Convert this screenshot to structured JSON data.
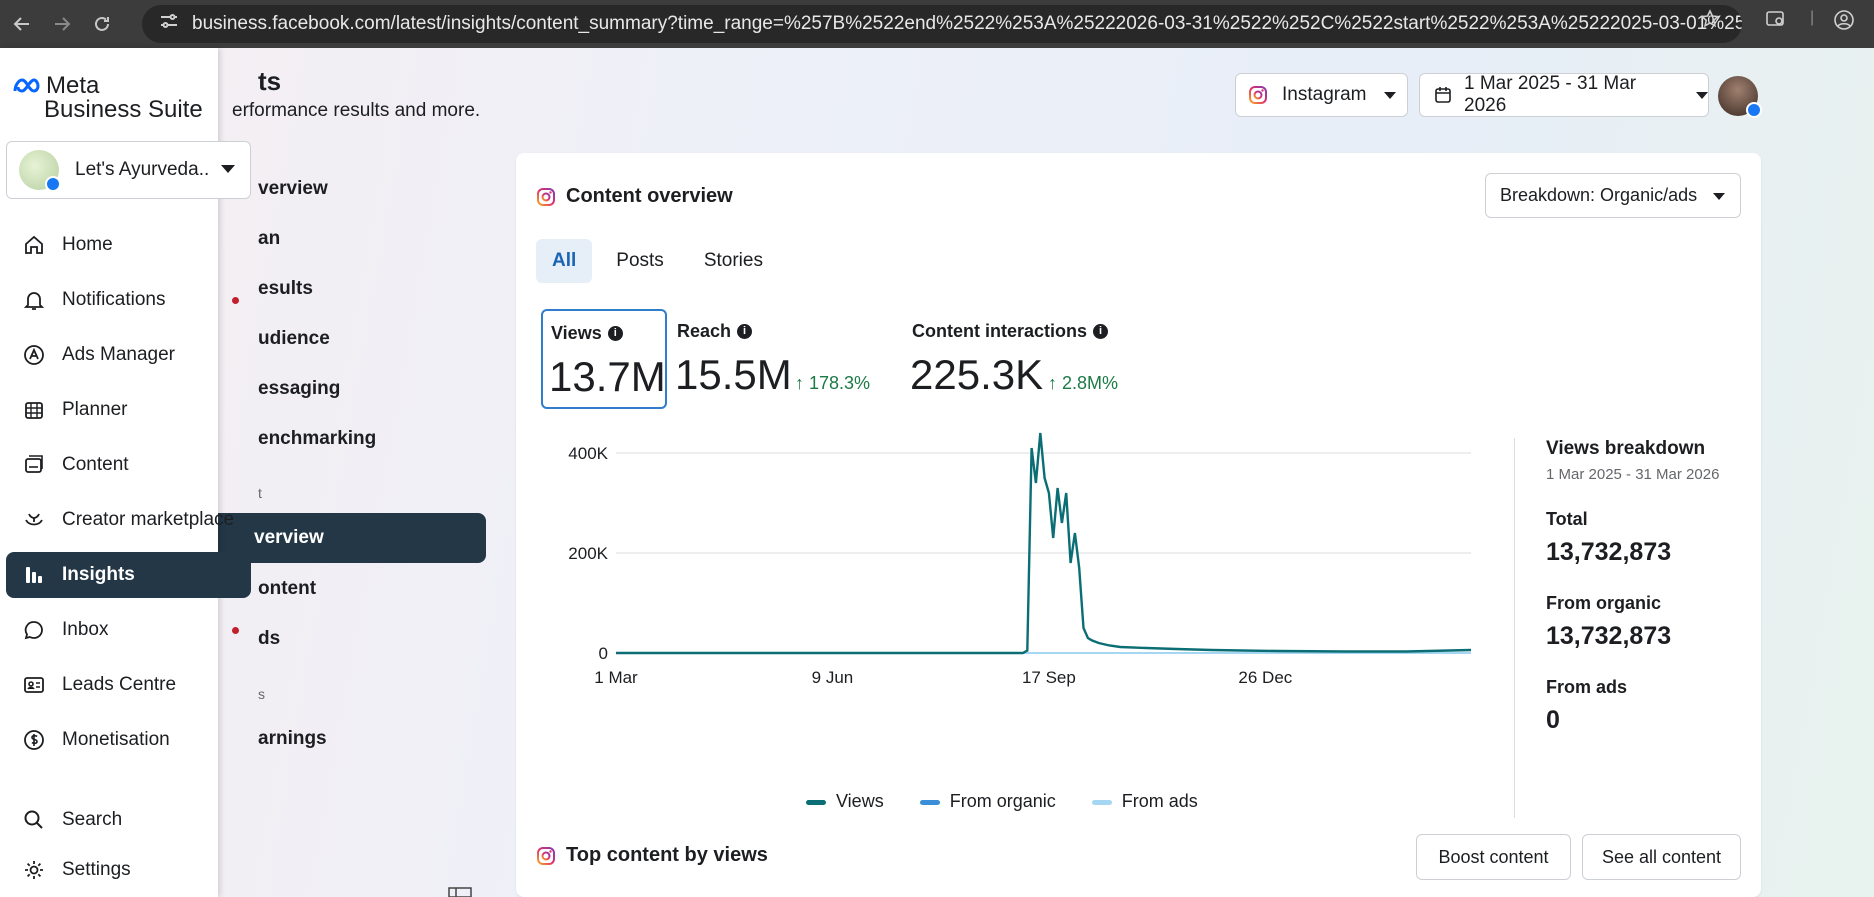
{
  "browser": {
    "url": "business.facebook.com/latest/insights/content_summary?time_range=%257B%2522end%2522%253A%25222026-03-31%2522%252C%2522start%2522%253A%25222025-03-01%2522%257D..."
  },
  "brand": {
    "line1": "Meta",
    "line2": "Business Suite"
  },
  "account": {
    "name": "Let's Ayurveda..."
  },
  "sidebar": {
    "items": [
      {
        "label": "Home",
        "icon": "home-icon"
      },
      {
        "label": "Notifications",
        "icon": "bell-icon",
        "badge": true
      },
      {
        "label": "Ads Manager",
        "icon": "ads-manager-icon"
      },
      {
        "label": "Planner",
        "icon": "calendar-icon"
      },
      {
        "label": "Content",
        "icon": "content-icon"
      },
      {
        "label": "Creator marketplace",
        "icon": "creator-icon"
      },
      {
        "label": "Insights",
        "icon": "insights-icon",
        "active": true
      },
      {
        "label": "Inbox",
        "icon": "chat-icon",
        "badge": true
      },
      {
        "label": "Leads Centre",
        "icon": "leads-icon"
      },
      {
        "label": "Monetisation",
        "icon": "dollar-icon"
      }
    ],
    "bottom": [
      {
        "label": "Search",
        "icon": "search-icon"
      },
      {
        "label": "Settings",
        "icon": "gear-icon"
      }
    ]
  },
  "subnav": {
    "title": "ts",
    "subtitle": "erformance results and more.",
    "items": [
      "verview",
      "an",
      "esults",
      "udience",
      "essaging",
      "enchmarking"
    ],
    "section1": "t",
    "active": "verview",
    "items2": [
      "ontent",
      "ds"
    ],
    "section2": "s",
    "items3": [
      "arnings"
    ]
  },
  "header": {
    "platform": "Instagram",
    "date_range": "1 Mar 2025 - 31 Mar 2026"
  },
  "overview": {
    "title": "Content overview",
    "breakdown_button": "Breakdown: Organic/ads",
    "tabs": [
      "All",
      "Posts",
      "Stories"
    ],
    "metrics": {
      "views": {
        "label": "Views",
        "value": "13.7M"
      },
      "reach": {
        "label": "Reach",
        "value": "15.5M",
        "change": "178.3%"
      },
      "interactions": {
        "label": "Content interactions",
        "value": "225.3K",
        "change": "2.8M%"
      }
    },
    "legend": [
      "Views",
      "From organic",
      "From ads"
    ],
    "views_breakdown": {
      "title": "Views breakdown",
      "dates": "1 Mar 2025 - 31 Mar 2026",
      "total_label": "Total",
      "total": "13,732,873",
      "organic_label": "From organic",
      "organic": "13,732,873",
      "ads_label": "From ads",
      "ads": "0"
    }
  },
  "top_content": {
    "title": "Top content by views",
    "boost": "Boost content",
    "see_all": "See all content"
  },
  "colors": {
    "views": "#0b6e74",
    "organic": "#3b8fd9",
    "ads": "#a5d7f3",
    "active_nav": "#243747"
  },
  "chart_data": {
    "type": "line",
    "x_ticks": [
      "1 Mar",
      "9 Jun",
      "17 Sep",
      "26 Dec"
    ],
    "y_ticks": [
      "0",
      "200K",
      "400K"
    ],
    "ylim": [
      0,
      400000
    ],
    "series": [
      {
        "name": "Views",
        "x": [
          "1 Mar",
          "1 Apr",
          "1 May",
          "1 Jun",
          "1 Jul",
          "1 Aug",
          "1 Sep",
          "5 Sep",
          "7 Sep",
          "9 Sep",
          "11 Sep",
          "13 Sep",
          "15 Sep",
          "17 Sep",
          "19 Sep",
          "21 Sep",
          "23 Sep",
          "25 Sep",
          "27 Sep",
          "29 Sep",
          "1 Oct",
          "3 Oct",
          "5 Oct",
          "7 Oct",
          "10 Oct",
          "15 Oct",
          "20 Oct",
          "1 Nov",
          "15 Nov",
          "1 Dec",
          "15 Dec",
          "1 Jan",
          "1 Feb",
          "1 Mar",
          "31 Mar"
        ],
        "values": [
          0,
          0,
          0,
          0,
          0,
          0,
          0,
          0,
          5000,
          410000,
          340000,
          440000,
          350000,
          320000,
          230000,
          330000,
          260000,
          320000,
          180000,
          240000,
          170000,
          50000,
          30000,
          25000,
          20000,
          15000,
          12000,
          10000,
          8000,
          6000,
          5000,
          4000,
          3000,
          3000,
          6000
        ]
      },
      {
        "name": "From organic",
        "values": []
      },
      {
        "name": "From ads",
        "values": []
      }
    ]
  }
}
